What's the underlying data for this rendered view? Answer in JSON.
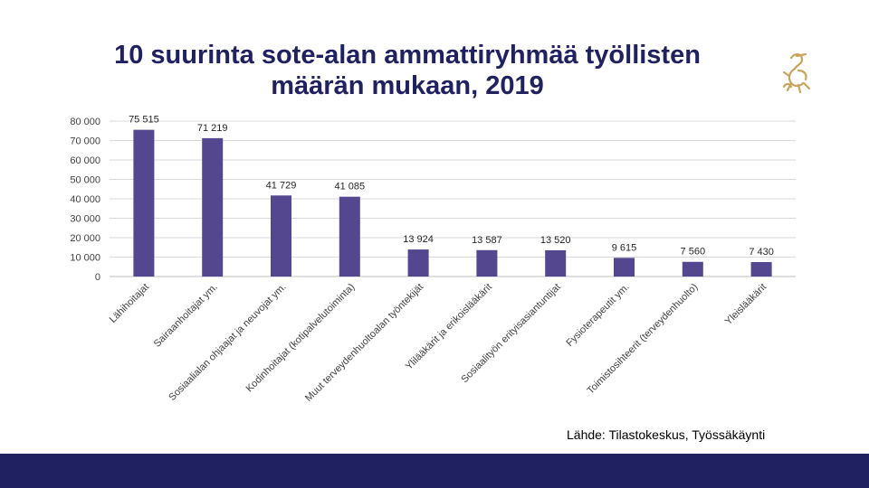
{
  "header": {
    "title_line1": "10 suurinta sote-alan ammattiryhmää työllisten",
    "title_line2": "määrän mukaan, 2019",
    "logo_icon": "lion-crest-icon"
  },
  "footer": {
    "source": "Lähde: Tilastokeskus, Työssäkäynti"
  },
  "colors": {
    "bar": "#54478f",
    "title": "#1f2160",
    "footer_bar": "#1f2160",
    "logo": "#c9a35a",
    "grid": "#d9d9d9"
  },
  "chart_data": {
    "type": "bar",
    "title": "10 suurinta sote-alan ammattiryhmää työllisten määrän mukaan, 2019",
    "categories": [
      "Lähihoitajat",
      "Sairaanhoitajat ym.",
      "Sosiaalialan ohjaajat ja neuvojat ym.",
      "Kodinhoitajat (kotipalvelutoiminta)",
      "Muut terveydenhuoltoalan työntekijät",
      "Ylilääkärit ja erikoislääkärit",
      "Sosiaalityön erityisasiantuntijat",
      "Fysioterapeutit ym.",
      "Toimistosihteerit (terveydenhuolto)",
      "Yleislääkärit"
    ],
    "values": [
      75515,
      71219,
      41729,
      41085,
      13924,
      13587,
      13520,
      9615,
      7560,
      7430
    ],
    "value_labels": [
      "75 515",
      "71 219",
      "41 729",
      "41 085",
      "13 924",
      "13 587",
      "13 520",
      "9 615",
      "7 560",
      "7 430"
    ],
    "yticks": [
      0,
      10000,
      20000,
      30000,
      40000,
      50000,
      60000,
      70000,
      80000
    ],
    "ytick_labels": [
      "0",
      "10 000",
      "20 000",
      "30 000",
      "40 000",
      "50 000",
      "60 000",
      "70 000",
      "80 000"
    ],
    "ylim": [
      0,
      80000
    ],
    "grid": true,
    "legend": "none"
  }
}
